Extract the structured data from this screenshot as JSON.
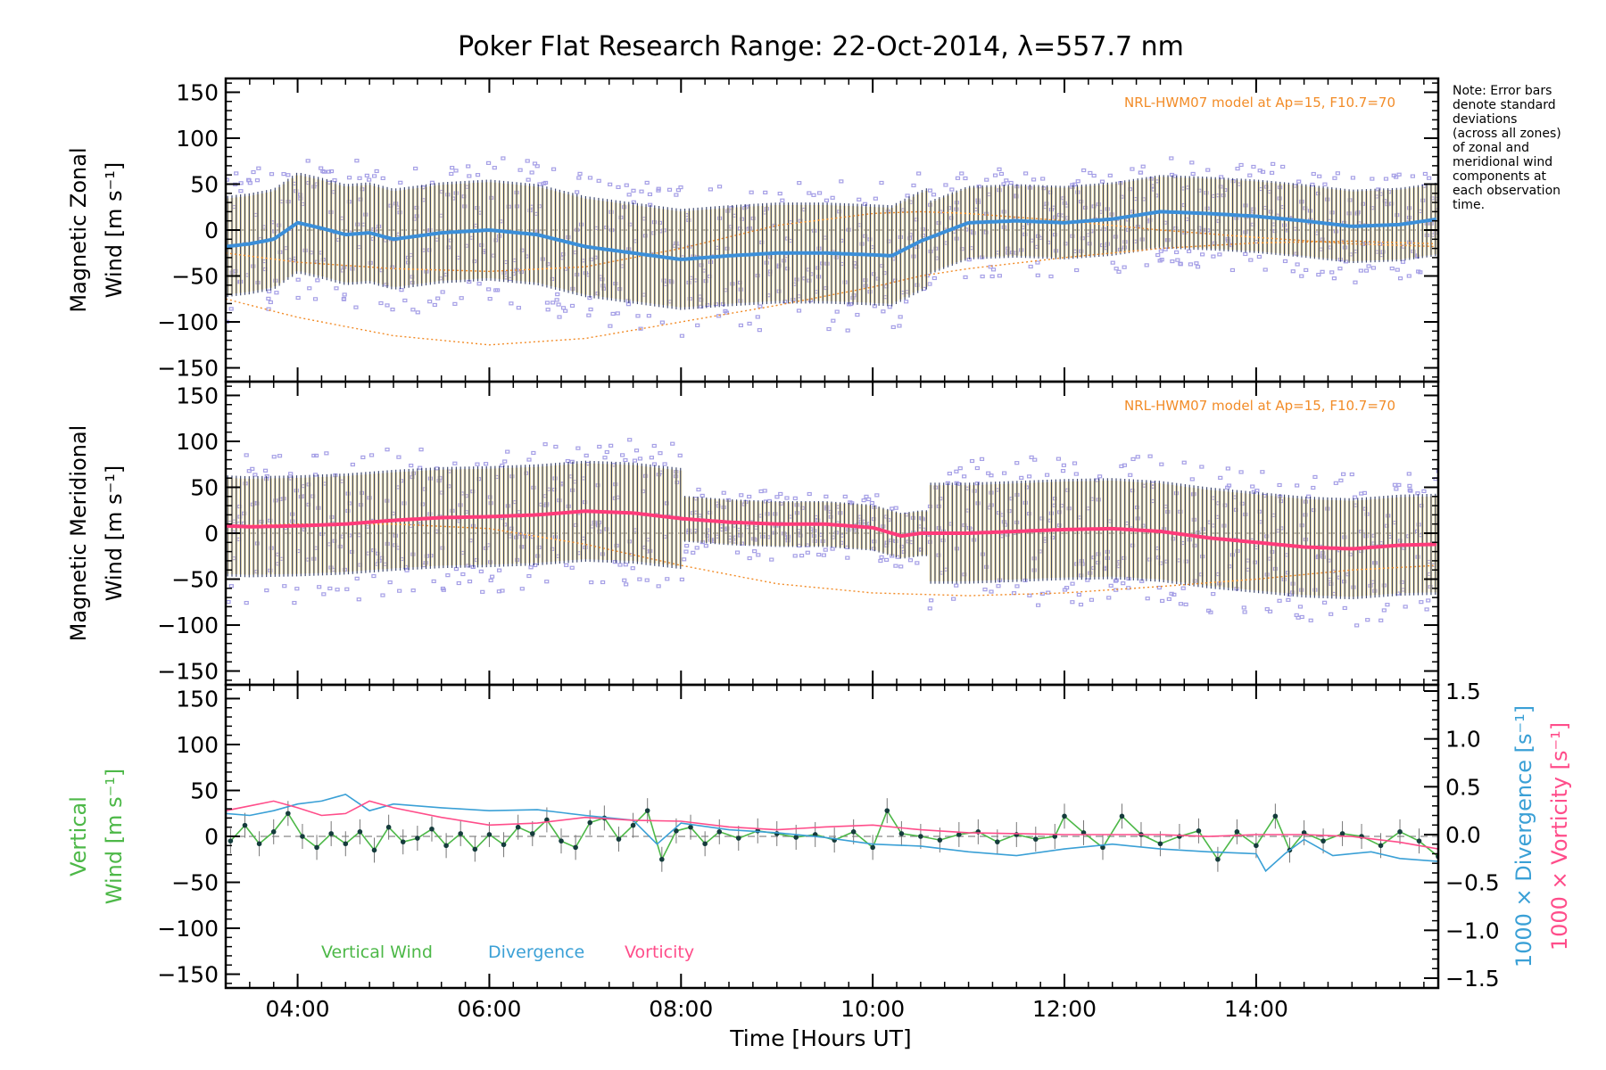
{
  "colors": {
    "zonal_mean": "#3b8fd9",
    "meridional_mean": "#ff3b7a",
    "vertical": "#4db848",
    "divergence": "#3aa0d6",
    "vorticity": "#ff4d8a",
    "model": "#f28c28",
    "scatter": "#a59fe6",
    "errorbar_dark": "#1e2a55",
    "errorbar_light": "#f5e09a"
  },
  "chart_data": {
    "title": "Poker Flat Research Range: 22-Oct-2014, λ=557.7 nm",
    "note": [
      "Note: Error bars",
      "denote standard",
      "deviations",
      "(across all zones)",
      "of zonal and",
      "meridional wind",
      "components at",
      "each observation",
      "time."
    ],
    "x_axis": {
      "label": "Time [Hours UT]",
      "range_hours": [
        3.25,
        15.9
      ],
      "ticks": [
        {
          "hour": 4,
          "label": "04:00"
        },
        {
          "hour": 6,
          "label": "06:00"
        },
        {
          "hour": 8,
          "label": "08:00"
        },
        {
          "hour": 10,
          "label": "10:00"
        },
        {
          "hour": 12,
          "label": "12:00"
        },
        {
          "hour": 14,
          "label": "14:00"
        }
      ]
    },
    "y_ticks": [
      150,
      100,
      50,
      0,
      -50,
      -100,
      -150
    ],
    "y_tick_labels": [
      "150",
      "100",
      "50",
      "0",
      "−50",
      "−100",
      "−150"
    ],
    "panels": [
      {
        "type": "line",
        "ylabel_lines": [
          "Magnetic Zonal",
          "Wind [m s⁻¹]"
        ],
        "ylim": [
          -165,
          165
        ],
        "model_label": "NRL-HWM07 model at Ap=15, F10.7=70",
        "mean_series": {
          "hours": [
            3.25,
            3.5,
            3.75,
            4.0,
            4.25,
            4.5,
            4.75,
            5.0,
            5.5,
            6.0,
            6.5,
            7.0,
            7.5,
            8.0,
            8.5,
            9.0,
            9.5,
            10.0,
            10.2,
            10.5,
            11.0,
            11.5,
            12.0,
            12.5,
            13.0,
            13.5,
            14.0,
            14.5,
            15.0,
            15.5,
            15.9
          ],
          "values": [
            -18,
            -15,
            -10,
            8,
            2,
            -5,
            -3,
            -10,
            -3,
            0,
            -5,
            -18,
            -25,
            -32,
            -28,
            -25,
            -25,
            -27,
            -28,
            -12,
            8,
            10,
            8,
            12,
            20,
            18,
            15,
            10,
            4,
            6,
            12
          ]
        },
        "model_curves": [
          {
            "hours": [
              3.25,
              4.0,
              5.0,
              6.0,
              7.0,
              8.0,
              9.0,
              10.0,
              10.5,
              11.0,
              12.0,
              13.0,
              14.0,
              15.0,
              15.9
            ],
            "values": [
              -75,
              -95,
              -115,
              -125,
              -118,
              -100,
              -82,
              -62,
              -50,
              -42,
              -30,
              -20,
              -14,
              -12,
              -15
            ]
          },
          {
            "hours": [
              3.25,
              4.0,
              5.0,
              6.0,
              7.0,
              8.0,
              9.0,
              10.0,
              10.5,
              11.0,
              12.0,
              13.0,
              14.0,
              15.0,
              15.9
            ],
            "values": [
              -25,
              -35,
              -42,
              -45,
              -40,
              -20,
              5,
              18,
              20,
              18,
              10,
              0,
              -8,
              -15,
              -18
            ]
          }
        ]
      },
      {
        "type": "line",
        "ylabel_lines": [
          "Magnetic Meridional",
          "Wind [m s⁻¹]"
        ],
        "ylim": [
          -165,
          165
        ],
        "model_label": "NRL-HWM07 model at Ap=15, F10.7=70",
        "mean_series": {
          "hours": [
            3.25,
            3.5,
            4.0,
            4.5,
            5.0,
            5.5,
            6.0,
            6.5,
            7.0,
            7.5,
            8.0,
            8.5,
            9.0,
            9.5,
            10.0,
            10.3,
            10.5,
            11.0,
            11.5,
            12.0,
            12.5,
            13.0,
            13.5,
            14.0,
            14.5,
            15.0,
            15.5,
            15.9
          ],
          "values": [
            8,
            7,
            8,
            10,
            14,
            17,
            18,
            20,
            24,
            22,
            16,
            12,
            10,
            10,
            6,
            -3,
            0,
            0,
            2,
            4,
            5,
            2,
            -5,
            -10,
            -15,
            -17,
            -13,
            -12
          ]
        },
        "model_curves": [
          {
            "hours": [
              3.25,
              4.0,
              5.0,
              6.0,
              7.0,
              8.0,
              9.0,
              10.0,
              11.0,
              12.0,
              13.0,
              14.0,
              15.0,
              15.9
            ],
            "values": [
              8,
              10,
              10,
              5,
              -12,
              -35,
              -55,
              -65,
              -68,
              -65,
              -58,
              -50,
              -40,
              -35
            ]
          }
        ]
      },
      {
        "type": "line",
        "ylabel_lines": [
          "Vertical",
          "Wind [m s⁻¹]"
        ],
        "ylim": [
          -165,
          165
        ],
        "right_axis": {
          "range": [
            -1.5,
            1.5
          ],
          "ticks": [
            1.5,
            1.0,
            0.5,
            0.0,
            -0.5,
            -1.0,
            -1.5
          ],
          "tick_labels": [
            "1.5",
            "1.0",
            "0.5",
            "0.0",
            "−0.5",
            "−1.0",
            "−1.5"
          ],
          "label_divergence": "1000 × Divergence [s⁻¹]",
          "label_vorticity": "1000 × Vorticity [s⁻¹]"
        },
        "legend": [
          "Vertical Wind",
          "Divergence",
          "Vorticity"
        ],
        "series": [
          {
            "name": "Vertical Wind",
            "hours": [
              3.3,
              3.45,
              3.6,
              3.75,
              3.9,
              4.05,
              4.2,
              4.35,
              4.5,
              4.65,
              4.8,
              4.95,
              5.1,
              5.25,
              5.4,
              5.55,
              5.7,
              5.85,
              6.0,
              6.15,
              6.3,
              6.45,
              6.6,
              6.75,
              6.9,
              7.05,
              7.2,
              7.35,
              7.5,
              7.65,
              7.8,
              7.95,
              8.1,
              8.25,
              8.4,
              8.6,
              8.8,
              9.0,
              9.2,
              9.4,
              9.6,
              9.8,
              10.0,
              10.15,
              10.3,
              10.5,
              10.7,
              10.9,
              11.1,
              11.3,
              11.5,
              11.7,
              11.9,
              12.0,
              12.2,
              12.4,
              12.6,
              12.8,
              13.0,
              13.2,
              13.4,
              13.6,
              13.8,
              14.0,
              14.2,
              14.35,
              14.5,
              14.7,
              14.9,
              15.1,
              15.3,
              15.5,
              15.7,
              15.9
            ],
            "values": [
              -5,
              12,
              -8,
              5,
              25,
              0,
              -12,
              3,
              -8,
              5,
              -15,
              10,
              -6,
              -2,
              8,
              -10,
              3,
              -14,
              2,
              -9,
              10,
              3,
              18,
              -5,
              -12,
              15,
              20,
              -3,
              12,
              28,
              -25,
              6,
              10,
              -8,
              5,
              -2,
              6,
              3,
              -1,
              2,
              -4,
              5,
              -12,
              28,
              3,
              0,
              -4,
              2,
              5,
              -6,
              2,
              -3,
              0,
              22,
              4,
              -12,
              22,
              2,
              -8,
              0,
              6,
              -25,
              5,
              -10,
              22,
              -15,
              4,
              -5,
              3,
              0,
              -10,
              5,
              -5,
              -22
            ]
          },
          {
            "name": "Divergence",
            "hours": [
              3.25,
              3.5,
              3.75,
              4.0,
              4.25,
              4.5,
              4.75,
              5.0,
              5.5,
              6.0,
              6.5,
              7.0,
              7.5,
              7.75,
              8.0,
              8.5,
              9.0,
              9.5,
              10.0,
              10.5,
              11.0,
              11.5,
              12.0,
              12.5,
              13.0,
              13.5,
              14.0,
              14.1,
              14.3,
              14.5,
              14.8,
              15.2,
              15.5,
              15.9
            ],
            "values": [
              0.22,
              0.2,
              0.25,
              0.32,
              0.35,
              0.42,
              0.25,
              0.32,
              0.28,
              0.25,
              0.26,
              0.2,
              0.15,
              -0.1,
              0.12,
              0.05,
              0.02,
              -0.03,
              -0.1,
              -0.12,
              -0.18,
              -0.22,
              -0.15,
              -0.1,
              -0.15,
              -0.18,
              -0.2,
              -0.38,
              -0.2,
              -0.05,
              -0.22,
              -0.18,
              -0.25,
              -0.28
            ]
          },
          {
            "name": "Vorticity",
            "hours": [
              3.25,
              3.5,
              3.75,
              4.0,
              4.25,
              4.5,
              4.75,
              5.0,
              5.5,
              6.0,
              6.5,
              7.0,
              7.5,
              8.0,
              8.5,
              9.0,
              9.5,
              10.0,
              10.5,
              11.0,
              11.5,
              12.0,
              12.5,
              13.0,
              13.5,
              14.0,
              14.5,
              15.0,
              15.5,
              15.9
            ],
            "values": [
              0.25,
              0.3,
              0.35,
              0.28,
              0.2,
              0.22,
              0.35,
              0.28,
              0.18,
              0.1,
              0.12,
              0.18,
              0.15,
              0.14,
              0.08,
              0.05,
              0.08,
              0.1,
              0.05,
              0.02,
              0.01,
              0.0,
              0.0,
              0.0,
              -0.02,
              0.0,
              0.0,
              -0.02,
              -0.08,
              -0.15
            ]
          }
        ]
      }
    ]
  }
}
